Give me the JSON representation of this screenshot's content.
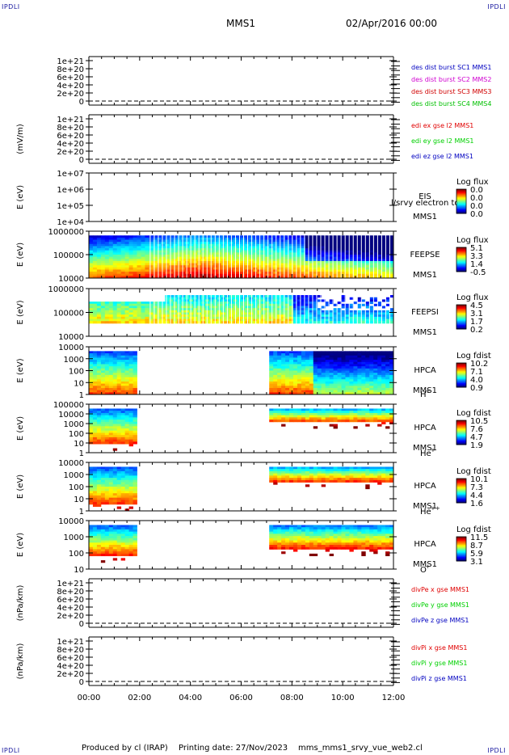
{
  "corner_label": "IPDLI",
  "header": {
    "title": "MMS1",
    "datetime": "02/Apr/2016 00:00"
  },
  "footer": {
    "produced_by": "Produced by cl (IRAP)",
    "printing_date": "Printing date: 27/Nov/2023",
    "script_name": "mms_mms1_srvy_vue_web2.cl"
  },
  "colors": {
    "mms1": "#0000c0",
    "mms2": "#d000d0",
    "mms3": "#d00000",
    "mms4": "#00c000",
    "red": "#e00000",
    "green": "#00d000",
    "blue": "#0000c0"
  },
  "chart_data": {
    "type": "multi-panel",
    "x_axis": {
      "range": [
        "00:00",
        "12:00"
      ],
      "tick_labels": [
        "00:00",
        "02:00",
        "04:00",
        "06:00",
        "08:00",
        "10:00",
        "12:00"
      ]
    },
    "panels": [
      {
        "id": "des-dist",
        "type": "line",
        "ylabel": "",
        "tick_labels": [
          "1e+21",
          "8e+20",
          "6e+20",
          "4e+20",
          "2e+20",
          "0"
        ],
        "series": [
          {
            "name": "des dist burst SC1 MMS1",
            "color": "#0000c0"
          },
          {
            "name": "des dist burst SC2 MMS2",
            "color": "#d000d0"
          },
          {
            "name": "des dist burst SC3 MMS3",
            "color": "#d00000"
          },
          {
            "name": "des dist burst SC4 MMS4",
            "color": "#00c000"
          }
        ]
      },
      {
        "id": "edi",
        "type": "line",
        "ylabel": "(mV/m)",
        "tick_labels": [
          "1e+21",
          "8e+20",
          "6e+20",
          "4e+20",
          "2e+20",
          "0"
        ],
        "series": [
          {
            "name": "edi ex gse l2 MMS1",
            "color": "#e00000"
          },
          {
            "name": "edi ey gse l2 MMS1",
            "color": "#00d000"
          },
          {
            "name": "edi ez gse l2 MMS1",
            "color": "#0000c0"
          }
        ]
      },
      {
        "id": "eis",
        "type": "heatmap",
        "ylabel": "E (eV)",
        "tick_labels": [
          "1e+07",
          "1e+06",
          "1e+05",
          "1e+04"
        ],
        "labels": [
          "EIS",
          "MMS1"
        ],
        "overlay_text": "l/srvy electron to",
        "colorbar": {
          "title": "Log flux",
          "ticks": [
            "0.0",
            "0.0",
            "0.0",
            "0.0"
          ]
        }
      },
      {
        "id": "feepse",
        "type": "heatmap",
        "ylabel": "E (eV)",
        "tick_labels": [
          "1000000",
          "100000",
          "10000"
        ],
        "labels": [
          "FEEPSE",
          "MMS1"
        ],
        "colorbar": {
          "title": "Log flux",
          "ticks": [
            "5.1",
            "3.3",
            "1.4",
            "-0.5"
          ]
        }
      },
      {
        "id": "feepsi",
        "type": "heatmap",
        "ylabel": "E (eV)",
        "tick_labels": [
          "1000000",
          "100000",
          "10000"
        ],
        "labels": [
          "FEEPSI",
          "MMS1"
        ],
        "colorbar": {
          "title": "Log flux",
          "ticks": [
            "4.5",
            "3.1",
            "1.7",
            "0.2"
          ]
        }
      },
      {
        "id": "hpca-h",
        "type": "heatmap",
        "ylabel": "E (eV)",
        "tick_labels": [
          "10000",
          "1000",
          "100",
          "10",
          "1"
        ],
        "labels": [
          "HPCA",
          "MMS1"
        ],
        "species": "H",
        "species_sup": "+",
        "colorbar": {
          "title": "Log fdist",
          "ticks": [
            "10.2",
            "7.1",
            "4.0",
            "0.9"
          ]
        }
      },
      {
        "id": "hpca-he",
        "type": "heatmap",
        "ylabel": "E (eV)",
        "tick_labels": [
          "100000",
          "10000",
          "1000",
          "100",
          "10",
          "1"
        ],
        "labels": [
          "HPCA",
          "MMS1"
        ],
        "species": "He",
        "species_sup": "+",
        "colorbar": {
          "title": "Log fdist",
          "ticks": [
            "10.5",
            "7.6",
            "4.7",
            "1.9"
          ]
        }
      },
      {
        "id": "hpca-hepp",
        "type": "heatmap",
        "ylabel": "E (eV)",
        "tick_labels": [
          "10000",
          "1000",
          "100",
          "10",
          "1"
        ],
        "labels": [
          "HPCA",
          "MMS1"
        ],
        "species": "He",
        "species_sup": "++",
        "colorbar": {
          "title": "Log fdist",
          "ticks": [
            "10.1",
            "7.3",
            "4.4",
            "1.6"
          ]
        }
      },
      {
        "id": "hpca-o",
        "type": "heatmap",
        "ylabel": "E (eV)",
        "tick_labels": [
          "10000",
          "1000",
          "100",
          "10"
        ],
        "labels": [
          "HPCA",
          "MMS1"
        ],
        "species": "O",
        "species_sup": "+",
        "colorbar": {
          "title": "Log fdist",
          "ticks": [
            "11.5",
            "8.7",
            "5.9",
            "3.1"
          ]
        }
      },
      {
        "id": "divpe",
        "type": "line",
        "ylabel": "(nPa/km)",
        "tick_labels": [
          "1e+21",
          "8e+20",
          "6e+20",
          "4e+20",
          "2e+20",
          "0"
        ],
        "series": [
          {
            "name": "divPe x gse MMS1",
            "color": "#e00000"
          },
          {
            "name": "divPe y gse MMS1",
            "color": "#00d000"
          },
          {
            "name": "divPe z gse MMS1",
            "color": "#0000c0"
          }
        ]
      },
      {
        "id": "divpi",
        "type": "line",
        "ylabel": "(nPa/km)",
        "tick_labels": [
          "1e+21",
          "8e+20",
          "6e+20",
          "4e+20",
          "2e+20",
          "0"
        ],
        "series": [
          {
            "name": "divPi x gse MMS1",
            "color": "#e00000"
          },
          {
            "name": "divPi y gse MMS1",
            "color": "#00d000"
          },
          {
            "name": "divPi z gse MMS1",
            "color": "#0000c0"
          }
        ]
      }
    ]
  }
}
